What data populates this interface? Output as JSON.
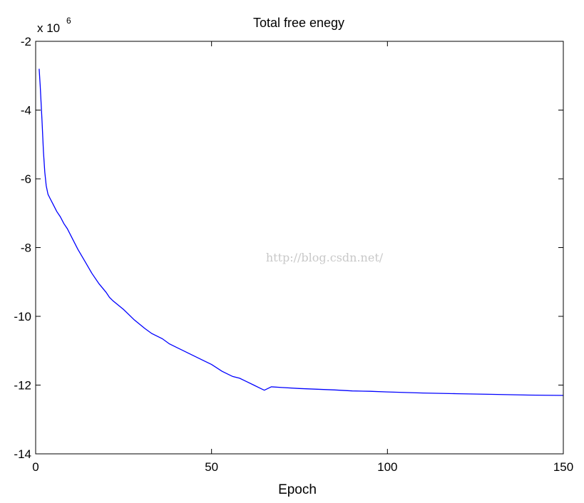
{
  "chart_data": {
    "type": "line",
    "title": "Total free enegy",
    "xlabel": "Epoch",
    "ylabel": "",
    "y_exponent_label": "x 10",
    "y_exponent_power": "6",
    "xlim": [
      0,
      150
    ],
    "ylim": [
      -14,
      -2
    ],
    "x_ticks": [
      0,
      50,
      100,
      150
    ],
    "x_tick_labels": [
      "0",
      "50",
      "100",
      "150"
    ],
    "y_ticks": [
      -2,
      -4,
      -6,
      -8,
      -10,
      -12,
      -14
    ],
    "y_tick_labels": [
      "-2",
      "-4",
      "-6",
      "-8",
      "-10",
      "-12",
      "-14"
    ],
    "grid": false,
    "series": [
      {
        "color": "#0000ff",
        "x": [
          1,
          1.3,
          1.8,
          2.2,
          2.6,
          3,
          3.5,
          4,
          5,
          6,
          7,
          8,
          9,
          10,
          12,
          14,
          16,
          18,
          20,
          21,
          22,
          25,
          28,
          31,
          33,
          36,
          38,
          40,
          43,
          46,
          50,
          53,
          56,
          58,
          60,
          62,
          64,
          65,
          66,
          67,
          70,
          75,
          80,
          85,
          90,
          95,
          100,
          110,
          120,
          130,
          140,
          150
        ],
        "y": [
          -2.8,
          -3.3,
          -4.3,
          -5.2,
          -5.8,
          -6.2,
          -6.45,
          -6.55,
          -6.75,
          -6.95,
          -7.1,
          -7.3,
          -7.45,
          -7.65,
          -8.05,
          -8.4,
          -8.75,
          -9.05,
          -9.3,
          -9.45,
          -9.55,
          -9.8,
          -10.1,
          -10.35,
          -10.5,
          -10.65,
          -10.8,
          -10.9,
          -11.05,
          -11.2,
          -11.4,
          -11.6,
          -11.75,
          -11.8,
          -11.9,
          -12.0,
          -12.1,
          -12.15,
          -12.1,
          -12.05,
          -12.07,
          -12.1,
          -12.12,
          -12.14,
          -12.17,
          -12.18,
          -12.2,
          -12.23,
          -12.25,
          -12.27,
          -12.29,
          -12.3
        ]
      }
    ]
  },
  "watermark": "http://blog.csdn.net/"
}
